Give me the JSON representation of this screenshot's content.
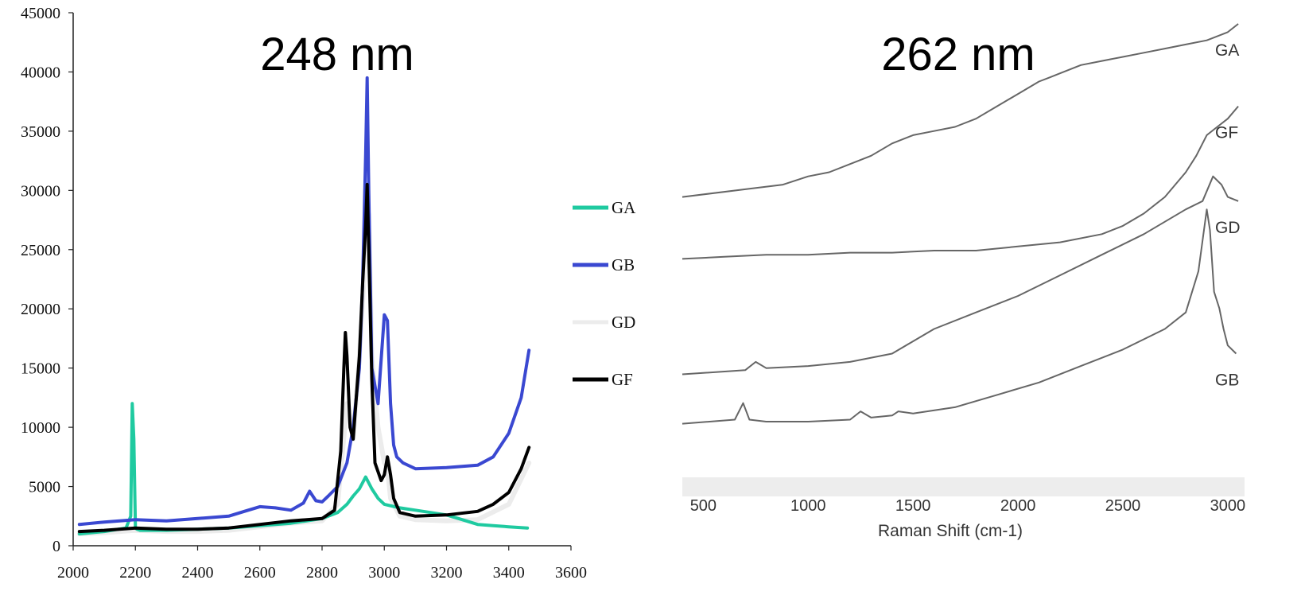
{
  "chart_data": [
    {
      "type": "line",
      "title": "248 nm",
      "xlabel": "",
      "ylabel": "",
      "xlim": [
        2000,
        3600
      ],
      "ylim": [
        0,
        45000
      ],
      "x_ticks": [
        2000,
        2200,
        2400,
        2600,
        2800,
        3000,
        3200,
        3400,
        3600
      ],
      "y_ticks": [
        0,
        5000,
        10000,
        15000,
        20000,
        25000,
        30000,
        35000,
        40000,
        45000
      ],
      "grid": false,
      "legend": "right",
      "series": [
        {
          "name": "GA",
          "color": "#1fcaa0",
          "x": [
            2020,
            2100,
            2170,
            2185,
            2190,
            2195,
            2200,
            2205,
            2215,
            2300,
            2400,
            2500,
            2600,
            2700,
            2800,
            2850,
            2880,
            2900,
            2920,
            2940,
            2960,
            2980,
            3000,
            3050,
            3100,
            3200,
            3250,
            3300,
            3350,
            3400,
            3460
          ],
          "y": [
            1000,
            1200,
            1500,
            2500,
            12000,
            9000,
            1500,
            1400,
            1300,
            1300,
            1400,
            1500,
            1700,
            1900,
            2300,
            2800,
            3500,
            4200,
            4800,
            5800,
            4800,
            4000,
            3500,
            3200,
            3000,
            2600,
            2200,
            1800,
            1700,
            1600,
            1500
          ]
        },
        {
          "name": "GB",
          "color": "#3a48d1",
          "x": [
            2020,
            2100,
            2200,
            2300,
            2400,
            2500,
            2550,
            2600,
            2650,
            2700,
            2740,
            2760,
            2780,
            2800,
            2820,
            2850,
            2880,
            2900,
            2920,
            2930,
            2940,
            2945,
            2950,
            2960,
            2980,
            3000,
            3010,
            3020,
            3030,
            3040,
            3060,
            3100,
            3200,
            3300,
            3350,
            3400,
            3440,
            3465
          ],
          "y": [
            1800,
            2000,
            2200,
            2100,
            2300,
            2500,
            2900,
            3300,
            3200,
            3000,
            3600,
            4600,
            3800,
            3700,
            4200,
            5000,
            7000,
            10000,
            15000,
            22000,
            33000,
            39500,
            30000,
            15000,
            12000,
            19500,
            19000,
            12000,
            8500,
            7500,
            7000,
            6500,
            6600,
            6800,
            7500,
            9500,
            12500,
            16500
          ]
        },
        {
          "name": "GD",
          "color": "#ececec",
          "x": [
            2020,
            2100,
            2200,
            2300,
            2400,
            2500,
            2600,
            2700,
            2800,
            2850,
            2880,
            2900,
            2920,
            2940,
            2950,
            2960,
            2980,
            3000,
            3010,
            3020,
            3050,
            3100,
            3200,
            3300,
            3400,
            3465
          ],
          "y": [
            1000,
            1100,
            1300,
            1200,
            1200,
            1300,
            1600,
            1900,
            2100,
            3500,
            12000,
            9000,
            16000,
            25000,
            28000,
            16000,
            10000,
            7000,
            6500,
            4000,
            2500,
            2200,
            2100,
            2200,
            3500,
            7000
          ]
        },
        {
          "name": "GF",
          "color": "#000000",
          "x": [
            2020,
            2100,
            2200,
            2300,
            2400,
            2500,
            2600,
            2700,
            2800,
            2840,
            2860,
            2870,
            2875,
            2880,
            2890,
            2900,
            2920,
            2930,
            2940,
            2945,
            2950,
            2960,
            2970,
            2990,
            3000,
            3010,
            3020,
            3030,
            3050,
            3100,
            3200,
            3300,
            3350,
            3400,
            3440,
            3465
          ],
          "y": [
            1200,
            1300,
            1500,
            1400,
            1400,
            1500,
            1800,
            2100,
            2300,
            3000,
            8000,
            15000,
            18000,
            16000,
            10000,
            9000,
            16000,
            22000,
            27000,
            30500,
            25000,
            14000,
            7000,
            5500,
            6000,
            7500,
            6000,
            4000,
            2800,
            2500,
            2600,
            2900,
            3500,
            4500,
            6500,
            8300
          ]
        }
      ]
    },
    {
      "type": "line",
      "title": "262 nm",
      "xlabel": "Raman Shift (cm-1)",
      "ylabel": "",
      "xlim": [
        400,
        3080
      ],
      "x_ticks": [
        500,
        1000,
        1500,
        2000,
        2500,
        3000
      ],
      "grid": false,
      "series": [
        {
          "name": "GA",
          "color": "#666666",
          "x": [
            400,
            720,
            880,
            1000,
            1100,
            1200,
            1300,
            1400,
            1500,
            1600,
            1700,
            1800,
            1900,
            2000,
            2100,
            2150,
            2200,
            2300,
            2400,
            2500,
            2600,
            2700,
            2800,
            2900,
            3000,
            3050
          ],
          "y": [
            0.68,
            0.7,
            0.71,
            0.73,
            0.74,
            0.76,
            0.78,
            0.81,
            0.83,
            0.84,
            0.85,
            0.87,
            0.9,
            0.93,
            0.96,
            0.97,
            0.98,
            1.0,
            1.01,
            1.02,
            1.03,
            1.04,
            1.05,
            1.06,
            1.08,
            1.1
          ]
        },
        {
          "name": "GF",
          "color": "#666666",
          "x": [
            400,
            600,
            800,
            1000,
            1200,
            1400,
            1600,
            1800,
            2000,
            2200,
            2400,
            2500,
            2600,
            2700,
            2800,
            2850,
            2900,
            2950,
            3000,
            3050
          ],
          "y": [
            0.53,
            0.535,
            0.54,
            0.54,
            0.545,
            0.545,
            0.55,
            0.55,
            0.56,
            0.57,
            0.59,
            0.61,
            0.64,
            0.68,
            0.74,
            0.78,
            0.83,
            0.85,
            0.87,
            0.9
          ]
        },
        {
          "name": "GD",
          "color": "#666666",
          "x": [
            400,
            700,
            750,
            800,
            1000,
            1200,
            1400,
            1500,
            1600,
            1800,
            2000,
            2200,
            2400,
            2600,
            2800,
            2880,
            2930,
            2970,
            3000,
            3050
          ],
          "y": [
            0.25,
            0.26,
            0.28,
            0.265,
            0.27,
            0.28,
            0.3,
            0.33,
            0.36,
            0.4,
            0.44,
            0.49,
            0.54,
            0.59,
            0.65,
            0.67,
            0.73,
            0.71,
            0.68,
            0.67
          ]
        },
        {
          "name": "GB",
          "color": "#666666",
          "x": [
            400,
            650,
            690,
            720,
            800,
            1000,
            1200,
            1250,
            1300,
            1400,
            1430,
            1500,
            1700,
            1900,
            2100,
            2300,
            2500,
            2700,
            2800,
            2860,
            2900,
            2915,
            2935,
            2960,
            2980,
            3000,
            3040
          ],
          "y": [
            0.13,
            0.14,
            0.18,
            0.14,
            0.135,
            0.135,
            0.14,
            0.16,
            0.145,
            0.15,
            0.16,
            0.155,
            0.17,
            0.2,
            0.23,
            0.27,
            0.31,
            0.36,
            0.4,
            0.5,
            0.65,
            0.6,
            0.45,
            0.41,
            0.36,
            0.32,
            0.3
          ]
        }
      ]
    }
  ]
}
